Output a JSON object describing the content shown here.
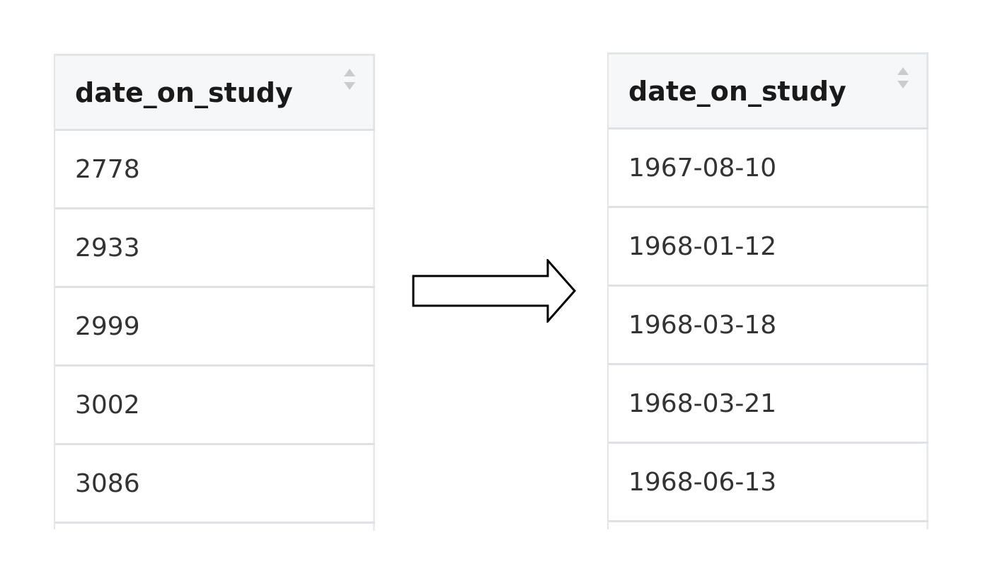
{
  "tables": {
    "left": {
      "header": "date_on_study",
      "rows": [
        "2778",
        "2933",
        "2999",
        "3002",
        "3086"
      ]
    },
    "right": {
      "header": "date_on_study",
      "rows": [
        "1967-08-10",
        "1968-01-12",
        "1968-03-18",
        "1968-03-21",
        "1968-06-13"
      ]
    }
  },
  "icons": {
    "sort": "sort-updown-icon",
    "arrow": "right-arrow-icon"
  },
  "colors": {
    "header_bg": "#f6f7f9",
    "border": "#dee2e6",
    "sort_icon": "#c8ccd0",
    "arrow_stroke": "#000000"
  }
}
